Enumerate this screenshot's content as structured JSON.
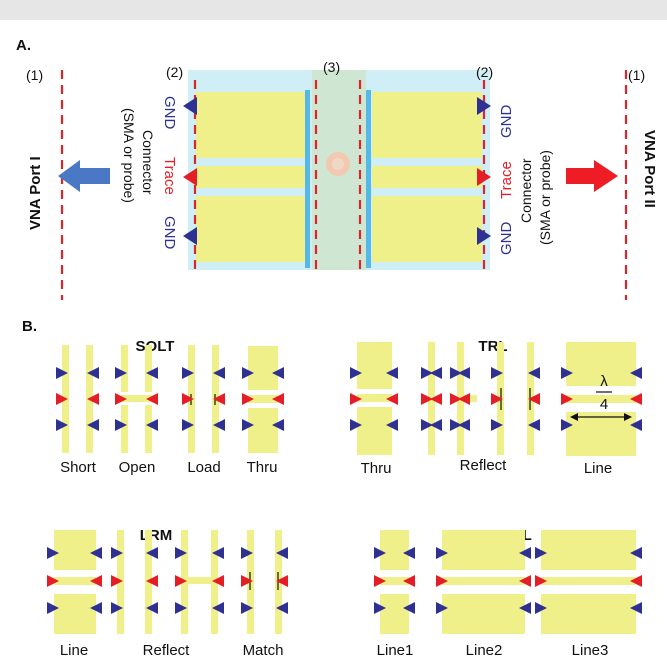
{
  "section_a": {
    "label": "A.",
    "plane_1": "(1)",
    "plane_2": "(2)",
    "plane_3": "(3)",
    "port_left": "VNA Port I",
    "port_right": "VNA Port II",
    "connector_line1": "Connector",
    "connector_line2": "(SMA or probe)",
    "gnd": "GND",
    "trace": "Trace"
  },
  "section_b": {
    "label": "B.",
    "solt": {
      "title": "SOLT",
      "labels": [
        "Short",
        "Open",
        "Load",
        "Thru"
      ]
    },
    "trl": {
      "title": "TRL",
      "labels": [
        "Thru",
        "Reflect",
        "Line"
      ],
      "lambda": "λ",
      "four": "4"
    },
    "lrm": {
      "title": "LRM",
      "labels": [
        "Line",
        "Reflect",
        "Match"
      ]
    },
    "mtrl": {
      "title": "m-TRL",
      "labels": [
        "Line1",
        "Line2",
        "Line3"
      ]
    }
  },
  "colors": {
    "board": "#f0f08a",
    "cyan_band": "#cfeef6",
    "center_green": "#cfe7d2",
    "blue_line": "#55b8e6",
    "red_dash": "#d9262c",
    "gnd_tri": "#2e3192",
    "trace_tri": "#e41e26",
    "arrow_blue": "#4a78c4",
    "arrow_red": "#ee1c25"
  }
}
